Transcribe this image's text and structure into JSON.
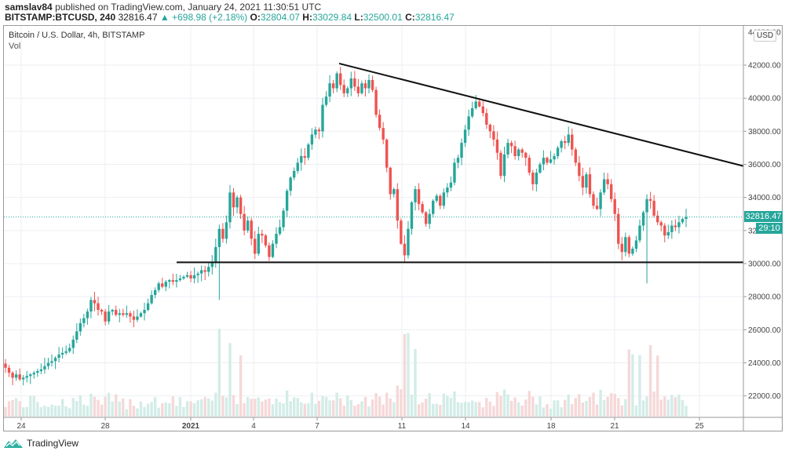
{
  "header": {
    "author": "samslav84",
    "published_text": "published on TradingView.com, January 24, 2021 11:30:51 UTC",
    "symbol": "BITSTAMP:BTCUSD, 240",
    "last": "32816.47",
    "change_arrow": "▲",
    "change": "+698.98 (+2.18%)",
    "o_label": "O:",
    "o": "32804.07",
    "h_label": "H:",
    "h": "33029.84",
    "l_label": "L:",
    "l": "32500.01",
    "c_label": "C:",
    "c": "32816.47"
  },
  "pane": {
    "title": "Bitcoin / U.S. Dollar, 4h, BITSTAMP",
    "volume_label": "Vol"
  },
  "price_axis": {
    "currency_badge": "USD",
    "last_price_label": "32816.47",
    "countdown_label": "29:10"
  },
  "footer": {
    "brand": "TradingView"
  },
  "colors": {
    "up": "#26a69a",
    "down": "#ef5350",
    "up_volume": "#d3ece7",
    "down_volume": "#f6d8d8",
    "grid": "#eeeff3",
    "trendline": "#111111"
  },
  "chart_data": {
    "type": "candlestick",
    "title": "Bitcoin / U.S. Dollar, 4h, BITSTAMP",
    "timeframe": "4h",
    "ylabel": "USD",
    "ylim": [
      20800,
      44000
    ],
    "y_ticks": [
      "42000.00",
      "40000.00",
      "38000.00",
      "36000.00",
      "34000.00",
      "32000.00",
      "30000.00",
      "28000.00",
      "26000.00",
      "24000.00",
      "22000.00"
    ],
    "x_ticks": [
      {
        "label": "24",
        "x": 27
      },
      {
        "label": "28",
        "x": 134
      },
      {
        "label": "2021",
        "x": 243,
        "bold": true
      },
      {
        "label": "4",
        "x": 323
      },
      {
        "label": "7",
        "x": 404
      },
      {
        "label": "11",
        "x": 512
      },
      {
        "label": "14",
        "x": 593
      },
      {
        "label": "18",
        "x": 702
      },
      {
        "label": "21",
        "x": 783
      },
      {
        "label": "25",
        "x": 891
      }
    ],
    "last_price": 32816.47,
    "trendlines": [
      {
        "name": "descending-resistance",
        "from": {
          "x": 432,
          "price": 42100
        },
        "to": {
          "x": 947,
          "price": 35900
        }
      },
      {
        "name": "horizontal-support",
        "from": {
          "x": 225,
          "price": 30080
        },
        "to": {
          "x": 947,
          "price": 30080
        }
      }
    ],
    "candles_close_path": [
      23700,
      23400,
      23100,
      23300,
      23000,
      23100,
      23200,
      23300,
      23400,
      23500,
      23600,
      23800,
      24000,
      24100,
      24300,
      24500,
      24600,
      24700,
      24900,
      25400,
      25900,
      26400,
      26700,
      27100,
      27800,
      27600,
      27200,
      27100,
      26500,
      27100,
      27200,
      26900,
      27000,
      26900,
      27000,
      26800,
      26600,
      26800,
      27000,
      27200,
      27600,
      28100,
      28400,
      28800,
      28600,
      28900,
      29000,
      28900,
      29000,
      29100,
      29200,
      29300,
      29100,
      29300,
      29400,
      29600,
      29500,
      29800,
      30100,
      31000,
      32100,
      31500,
      32500,
      34300,
      33400,
      34000,
      33000,
      32000,
      32600,
      31500,
      30600,
      31800,
      31700,
      31100,
      30400,
      31200,
      31800,
      32200,
      33200,
      34400,
      35200,
      35600,
      36100,
      36500,
      36400,
      37200,
      37800,
      38100,
      38000,
      39600,
      40100,
      40900,
      40600,
      41500,
      40800,
      40300,
      40600,
      41200,
      40700,
      40300,
      40900,
      40600,
      41100,
      40500,
      39000,
      38200,
      37500,
      35800,
      34200,
      34500,
      32600,
      31200,
      30500,
      32100,
      33700,
      34500,
      33600,
      33100,
      32400,
      33000,
      33800,
      34100,
      33500,
      34300,
      34600,
      34900,
      36100,
      36400,
      37300,
      38100,
      38900,
      39400,
      39800,
      39500,
      39100,
      38400,
      38000,
      37500,
      36700,
      35300,
      36600,
      37300,
      37100,
      36500,
      36900,
      36700,
      36400,
      35500,
      34800,
      35500,
      36000,
      36400,
      36100,
      36300,
      36500,
      37000,
      37400,
      37300,
      37800,
      36900,
      36100,
      35300,
      34600,
      35400,
      34200,
      33500,
      33300,
      34300,
      35100,
      34800,
      33900,
      33000,
      31200,
      30700,
      31600,
      30600,
      30900,
      31400,
      32300,
      33100,
      33900,
      33800,
      32900,
      32500,
      32300,
      31700,
      31900,
      32300,
      32200,
      32500,
      32700,
      32816
    ]
  }
}
